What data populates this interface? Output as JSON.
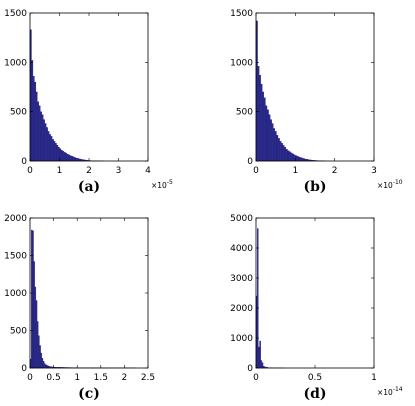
{
  "chart_data": [
    {
      "type": "bar",
      "panel_label": "(a)",
      "x_exponent": "×10",
      "x_exponent_power": "-5",
      "xlim": [
        0,
        4
      ],
      "ylim": [
        0,
        1500
      ],
      "xticks": [
        0,
        1,
        2,
        3,
        4
      ],
      "xtick_labels": [
        "0",
        "1",
        "2",
        "3",
        "4"
      ],
      "yticks": [
        0,
        500,
        1000,
        1500
      ],
      "ytick_labels": [
        "0",
        "500",
        "1000",
        "1500"
      ],
      "bin_width": 0.05,
      "values": [
        1330,
        1020,
        860,
        800,
        700,
        600,
        560,
        500,
        470,
        420,
        380,
        340,
        300,
        270,
        250,
        220,
        200,
        180,
        160,
        140,
        125,
        110,
        100,
        90,
        80,
        70,
        62,
        55,
        48,
        42,
        36,
        30,
        26,
        22,
        18,
        15,
        12,
        10,
        8,
        6,
        5,
        4,
        3,
        3,
        2,
        2,
        1,
        1,
        1,
        1
      ]
    },
    {
      "type": "bar",
      "panel_label": "(b)",
      "x_exponent": "×10",
      "x_exponent_power": "-10",
      "xlim": [
        0,
        3
      ],
      "ylim": [
        0,
        1500
      ],
      "xticks": [
        0,
        1,
        2,
        3
      ],
      "xtick_labels": [
        "0",
        "1",
        "2",
        "3"
      ],
      "yticks": [
        0,
        500,
        1000,
        1500
      ],
      "ytick_labels": [
        "0",
        "500",
        "1000",
        "1500"
      ],
      "bin_width": 0.04,
      "values": [
        1420,
        960,
        870,
        780,
        700,
        640,
        560,
        520,
        470,
        420,
        380,
        330,
        300,
        260,
        230,
        200,
        180,
        160,
        140,
        120,
        105,
        95,
        82,
        72,
        62,
        55,
        48,
        40,
        35,
        30,
        25,
        20,
        17,
        14,
        11,
        9,
        7,
        6,
        5,
        4,
        3,
        2,
        2,
        1,
        1
      ]
    },
    {
      "type": "bar",
      "panel_label": "(c)",
      "xlim": [
        0,
        2.5
      ],
      "ylim": [
        0,
        2000
      ],
      "xticks": [
        0,
        0.5,
        1,
        1.5,
        2,
        2.5
      ],
      "xtick_labels": [
        "0",
        "0.5",
        "1",
        "1.5",
        "2",
        "2.5"
      ],
      "yticks": [
        0,
        500,
        1000,
        1500,
        2000
      ],
      "ytick_labels": [
        "0",
        "500",
        "1000",
        "1500",
        "2000"
      ],
      "bin_width": 0.025,
      "values": [
        120,
        1840,
        1830,
        1420,
        1080,
        900,
        620,
        430,
        300,
        200,
        130,
        90,
        60,
        45,
        35,
        28,
        22,
        18,
        15,
        13,
        12,
        11,
        10,
        10,
        9,
        9,
        8,
        8,
        8,
        7,
        7,
        7,
        6,
        6,
        6,
        6,
        5,
        5,
        5,
        5,
        5,
        5,
        4,
        4,
        4,
        4,
        4,
        4,
        4,
        4,
        3,
        3,
        3,
        3,
        3,
        3,
        3,
        3,
        3,
        3,
        3,
        2,
        2,
        2,
        2,
        2,
        2,
        2,
        2,
        2,
        2,
        2,
        2,
        2,
        2,
        2,
        2,
        2,
        2,
        2,
        2,
        2,
        2,
        2,
        2,
        2,
        1,
        1,
        1,
        1
      ]
    },
    {
      "type": "bar",
      "panel_label": "(d)",
      "x_exponent": "×10",
      "x_exponent_power": "-14",
      "xlim": [
        0,
        1
      ],
      "ylim": [
        0,
        5000
      ],
      "xticks": [
        0,
        0.5,
        1
      ],
      "xtick_labels": [
        "0",
        "0.5",
        "1"
      ],
      "yticks": [
        0,
        1000,
        2000,
        3000,
        4000,
        5000
      ],
      "ytick_labels": [
        "0",
        "1000",
        "2000",
        "3000",
        "4000",
        "5000"
      ],
      "bin_width": 0.01,
      "values": [
        2400,
        4650,
        700,
        900,
        250,
        180,
        60,
        40,
        20,
        30,
        12,
        8,
        10,
        6,
        5,
        4,
        3,
        3,
        2,
        2,
        2,
        1,
        1,
        1,
        1
      ]
    }
  ]
}
